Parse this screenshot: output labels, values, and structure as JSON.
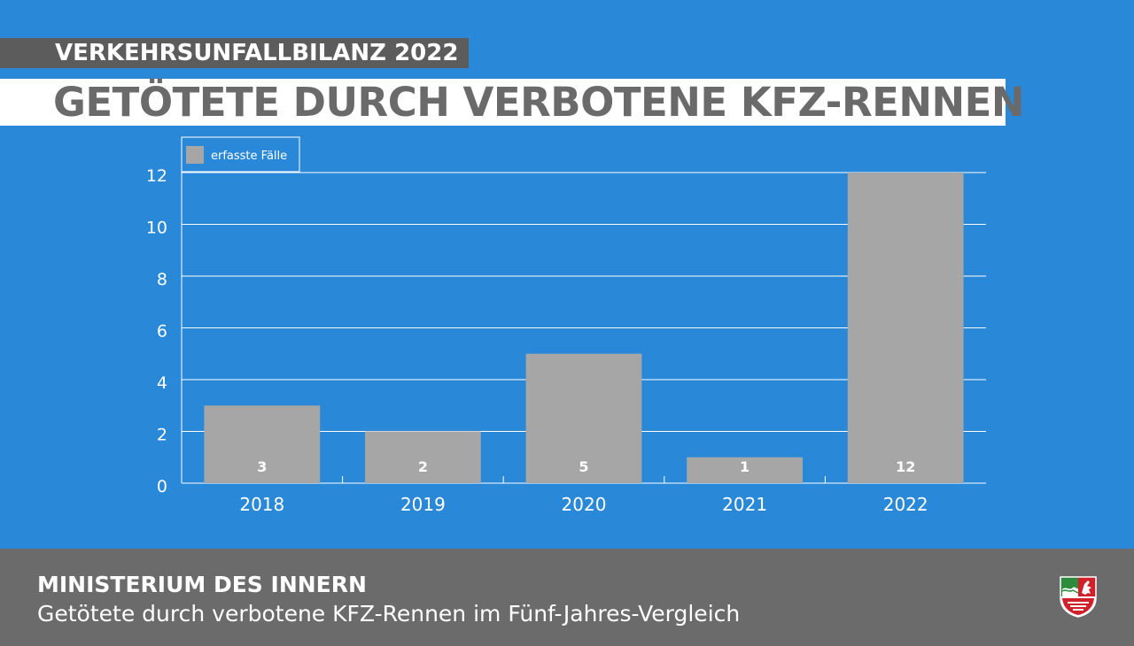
{
  "header": {
    "kicker": "VERKEHRSUNFALLBILANZ 2022",
    "title": "GETÖTETE DURCH VERBOTENE KFZ-RENNEN"
  },
  "footer": {
    "organization": "MINISTERIUM DES INNERN",
    "description": "Getötete durch verbotene KFZ-Rennen im Fünf-Jahres-Vergleich",
    "logo": "nrw-crest-icon"
  },
  "colors": {
    "background": "#2a88d8",
    "bar": "#a6a6a6",
    "footer": "#6b6b6b"
  },
  "chart_data": {
    "type": "bar",
    "categories": [
      "2018",
      "2019",
      "2020",
      "2021",
      "2022"
    ],
    "series": [
      {
        "name": "erfasste Fälle",
        "values": [
          3,
          2,
          5,
          1,
          12
        ]
      }
    ],
    "data_labels": [
      "3",
      "2",
      "5",
      "1",
      "12"
    ],
    "y_ticks": [
      "0",
      "2",
      "4",
      "6",
      "8",
      "10",
      "12"
    ],
    "ylim": [
      0,
      12
    ],
    "grid": true,
    "legend_position": "top-left"
  }
}
